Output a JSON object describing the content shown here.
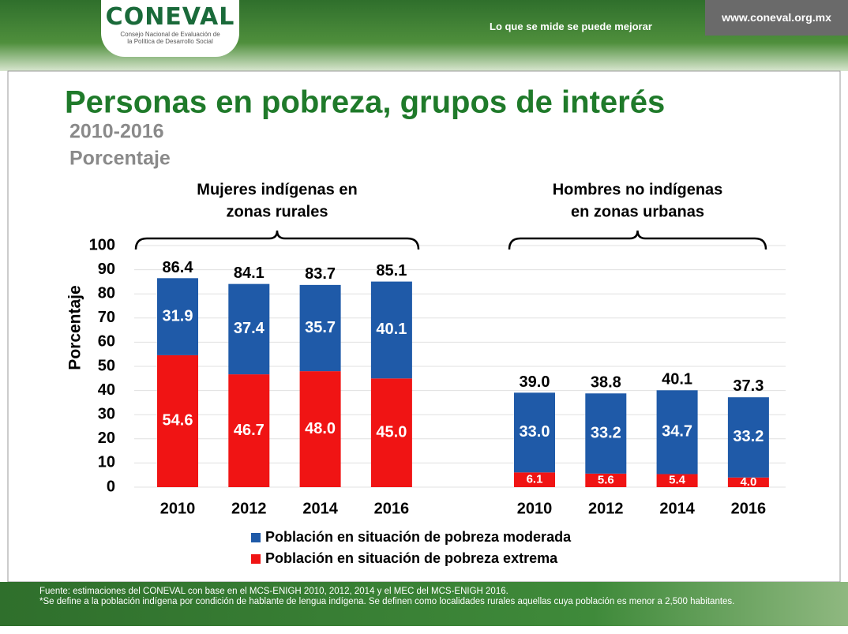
{
  "header": {
    "logo": "CONEVAL",
    "logo_subtitle": "Consejo Nacional de Evaluación de la Política de Desarrollo Social",
    "motto": "Lo que se mide se puede mejorar",
    "website": "www.coneval.org.mx"
  },
  "chart_data": {
    "type": "bar",
    "stacked": true,
    "title": "Personas en pobreza, grupos de interés",
    "subtitle": [
      "2010-2016",
      "Porcentaje"
    ],
    "y_label": "Porcentaje",
    "ylim": [
      0,
      100
    ],
    "yticks": [
      0,
      10,
      20,
      30,
      40,
      50,
      60,
      70,
      80,
      90,
      100
    ],
    "grid": true,
    "legend": [
      {
        "name": "Población en situación de pobreza moderada",
        "color": "#1f5aa8"
      },
      {
        "name": "Población en situación de pobreza extrema",
        "color": "#f01414"
      }
    ],
    "panels": [
      {
        "label": [
          "Mujeres indígenas en",
          "zonas rurales"
        ],
        "categories": [
          "2010",
          "2012",
          "2014",
          "2016"
        ],
        "series": [
          {
            "name": "Población en situación de pobreza extrema",
            "color": "#f01414",
            "values": [
              54.6,
              46.7,
              48.0,
              45.0
            ],
            "value_labels": [
              "54.6",
              "46.7",
              "48.0",
              "45.0"
            ]
          },
          {
            "name": "Población en situación de pobreza moderada",
            "color": "#1f5aa8",
            "values": [
              31.9,
              37.4,
              35.7,
              40.1
            ],
            "value_labels": [
              "31.9",
              "37.4",
              "35.7",
              "40.1"
            ]
          }
        ],
        "totals": [
          86.4,
          84.1,
          83.7,
          85.1
        ],
        "total_labels": [
          "86.4",
          "84.1",
          "83.7",
          "85.1"
        ]
      },
      {
        "label": [
          "Hombres no indígenas",
          "en zonas urbanas"
        ],
        "categories": [
          "2010",
          "2012",
          "2014",
          "2016"
        ],
        "series": [
          {
            "name": "Población en situación de pobreza extrema",
            "color": "#f01414",
            "values": [
              6.1,
              5.6,
              5.4,
              4.0
            ],
            "value_labels": [
              "6.1",
              "5.6",
              "5.4",
              "4.0"
            ]
          },
          {
            "name": "Población en situación de pobreza moderada",
            "color": "#1f5aa8",
            "values": [
              33.0,
              33.2,
              34.7,
              33.2
            ],
            "value_labels": [
              "33.0",
              "33.2",
              "34.7",
              "33.2"
            ]
          }
        ],
        "totals": [
          39.0,
          38.8,
          40.1,
          37.3
        ],
        "total_labels": [
          "39.0",
          "38.8",
          "40.1",
          "37.3"
        ]
      }
    ]
  },
  "footer": {
    "source": "Fuente: estimaciones del CONEVAL con base en el MCS-ENIGH 2010, 2012, 2014 y el MEC del MCS-ENIGH 2016.",
    "note": "*Se define a la población indígena por condición de hablante de lengua indígena. Se definen como localidades rurales aquellas cuya población es menor a 2,500 habitantes."
  }
}
